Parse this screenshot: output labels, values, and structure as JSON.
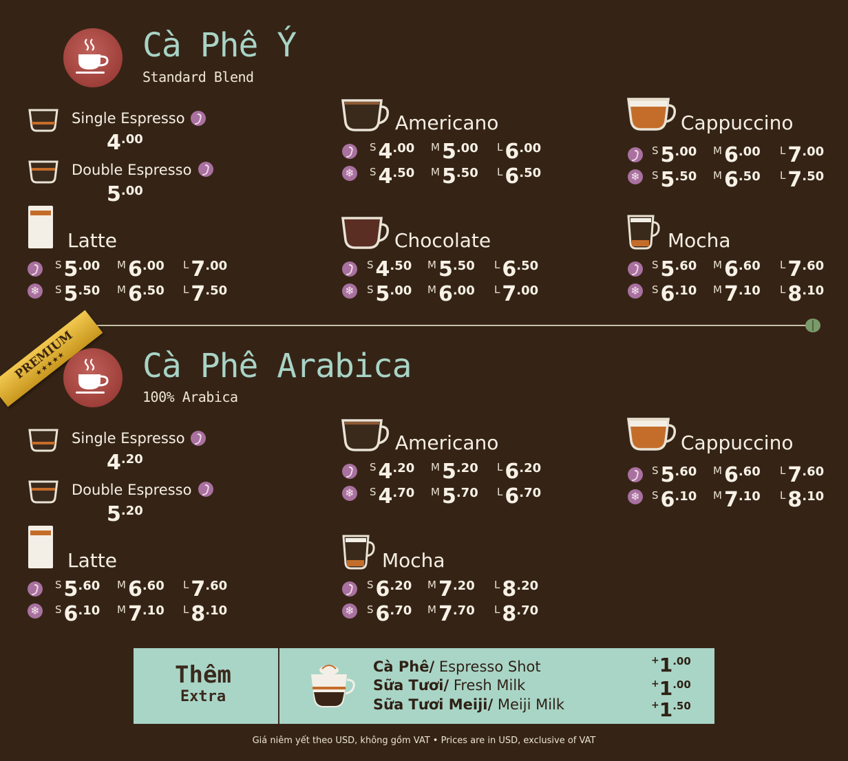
{
  "colors": {
    "background": "#352416",
    "heading": "#a8d4c6",
    "accent": "#a9719f",
    "extra_box": "#a9d5c7",
    "ribbon": "#e0b23a"
  },
  "section1": {
    "title": "Cà Phê Ý",
    "subtitle": "Standard Blend",
    "icon": "coffee-cup-icon",
    "single": {
      "name": "Single Espresso",
      "price_major": "4",
      "price_minor": ".00"
    },
    "double": {
      "name": "Double Espresso",
      "price_major": "5",
      "price_minor": ".00"
    },
    "americano": {
      "name": "Americano",
      "hot": [
        {
          "size": "S",
          "major": "4",
          "minor": ".00"
        },
        {
          "size": "M",
          "major": "5",
          "minor": ".00"
        },
        {
          "size": "L",
          "major": "6",
          "minor": ".00"
        }
      ],
      "iced": [
        {
          "size": "S",
          "major": "4",
          "minor": ".50"
        },
        {
          "size": "M",
          "major": "5",
          "minor": ".50"
        },
        {
          "size": "L",
          "major": "6",
          "minor": ".50"
        }
      ]
    },
    "cappuccino": {
      "name": "Cappuccino",
      "hot": [
        {
          "size": "S",
          "major": "5",
          "minor": ".00"
        },
        {
          "size": "M",
          "major": "6",
          "minor": ".00"
        },
        {
          "size": "L",
          "major": "7",
          "minor": ".00"
        }
      ],
      "iced": [
        {
          "size": "S",
          "major": "5",
          "minor": ".50"
        },
        {
          "size": "M",
          "major": "6",
          "minor": ".50"
        },
        {
          "size": "L",
          "major": "7",
          "minor": ".50"
        }
      ]
    },
    "latte": {
      "name": "Latte",
      "hot": [
        {
          "size": "S",
          "major": "5",
          "minor": ".00"
        },
        {
          "size": "M",
          "major": "6",
          "minor": ".00"
        },
        {
          "size": "L",
          "major": "7",
          "minor": ".00"
        }
      ],
      "iced": [
        {
          "size": "S",
          "major": "5",
          "minor": ".50"
        },
        {
          "size": "M",
          "major": "6",
          "minor": ".50"
        },
        {
          "size": "L",
          "major": "7",
          "minor": ".50"
        }
      ]
    },
    "chocolate": {
      "name": "Chocolate",
      "hot": [
        {
          "size": "S",
          "major": "4",
          "minor": ".50"
        },
        {
          "size": "M",
          "major": "5",
          "minor": ".50"
        },
        {
          "size": "L",
          "major": "6",
          "minor": ".50"
        }
      ],
      "iced": [
        {
          "size": "S",
          "major": "5",
          "minor": ".00"
        },
        {
          "size": "M",
          "major": "6",
          "minor": ".00"
        },
        {
          "size": "L",
          "major": "7",
          "minor": ".00"
        }
      ]
    },
    "mocha": {
      "name": "Mocha",
      "hot": [
        {
          "size": "S",
          "major": "5",
          "minor": ".60"
        },
        {
          "size": "M",
          "major": "6",
          "minor": ".60"
        },
        {
          "size": "L",
          "major": "7",
          "minor": ".60"
        }
      ],
      "iced": [
        {
          "size": "S",
          "major": "6",
          "minor": ".10"
        },
        {
          "size": "M",
          "major": "7",
          "minor": ".10"
        },
        {
          "size": "L",
          "major": "8",
          "minor": ".10"
        }
      ]
    }
  },
  "premium_ribbon": {
    "label": "PREMIUM",
    "stars": "★★★★★"
  },
  "section2": {
    "title": "Cà Phê Arabica",
    "subtitle": "100% Arabica",
    "icon": "coffee-cup-icon",
    "single": {
      "name": "Single Espresso",
      "price_major": "4",
      "price_minor": ".20"
    },
    "double": {
      "name": "Double Espresso",
      "price_major": "5",
      "price_minor": ".20"
    },
    "americano": {
      "name": "Americano",
      "hot": [
        {
          "size": "S",
          "major": "4",
          "minor": ".20"
        },
        {
          "size": "M",
          "major": "5",
          "minor": ".20"
        },
        {
          "size": "L",
          "major": "6",
          "minor": ".20"
        }
      ],
      "iced": [
        {
          "size": "S",
          "major": "4",
          "minor": ".70"
        },
        {
          "size": "M",
          "major": "5",
          "minor": ".70"
        },
        {
          "size": "L",
          "major": "6",
          "minor": ".70"
        }
      ]
    },
    "cappuccino": {
      "name": "Cappuccino",
      "hot": [
        {
          "size": "S",
          "major": "5",
          "minor": ".60"
        },
        {
          "size": "M",
          "major": "6",
          "minor": ".60"
        },
        {
          "size": "L",
          "major": "7",
          "minor": ".60"
        }
      ],
      "iced": [
        {
          "size": "S",
          "major": "6",
          "minor": ".10"
        },
        {
          "size": "M",
          "major": "7",
          "minor": ".10"
        },
        {
          "size": "L",
          "major": "8",
          "minor": ".10"
        }
      ]
    },
    "latte": {
      "name": "Latte",
      "hot": [
        {
          "size": "S",
          "major": "5",
          "minor": ".60"
        },
        {
          "size": "M",
          "major": "6",
          "minor": ".60"
        },
        {
          "size": "L",
          "major": "7",
          "minor": ".60"
        }
      ],
      "iced": [
        {
          "size": "S",
          "major": "6",
          "minor": ".10"
        },
        {
          "size": "M",
          "major": "7",
          "minor": ".10"
        },
        {
          "size": "L",
          "major": "8",
          "minor": ".10"
        }
      ]
    },
    "mocha": {
      "name": "Mocha",
      "hot": [
        {
          "size": "S",
          "major": "6",
          "minor": ".20"
        },
        {
          "size": "M",
          "major": "7",
          "minor": ".20"
        },
        {
          "size": "L",
          "major": "8",
          "minor": ".20"
        }
      ],
      "iced": [
        {
          "size": "S",
          "major": "6",
          "minor": ".70"
        },
        {
          "size": "M",
          "major": "7",
          "minor": ".70"
        },
        {
          "size": "L",
          "major": "8",
          "minor": ".70"
        }
      ]
    }
  },
  "extra": {
    "title": "Thêm",
    "subtitle": "Extra",
    "items": [
      {
        "vi": "Cà Phê/",
        "en": " Espresso Shot",
        "plus": "+",
        "major": "1",
        "minor": ".00"
      },
      {
        "vi": "Sữa Tươi/",
        "en": " Fresh Milk",
        "plus": "+",
        "major": "1",
        "minor": ".00"
      },
      {
        "vi": "Sữa Tươi Meiji/",
        "en": " Meiji Milk",
        "plus": "+",
        "major": "1",
        "minor": ".50"
      }
    ]
  },
  "footer": "Giá niêm yết theo USD, không gồm VAT • Prices are in USD, exclusive of VAT"
}
